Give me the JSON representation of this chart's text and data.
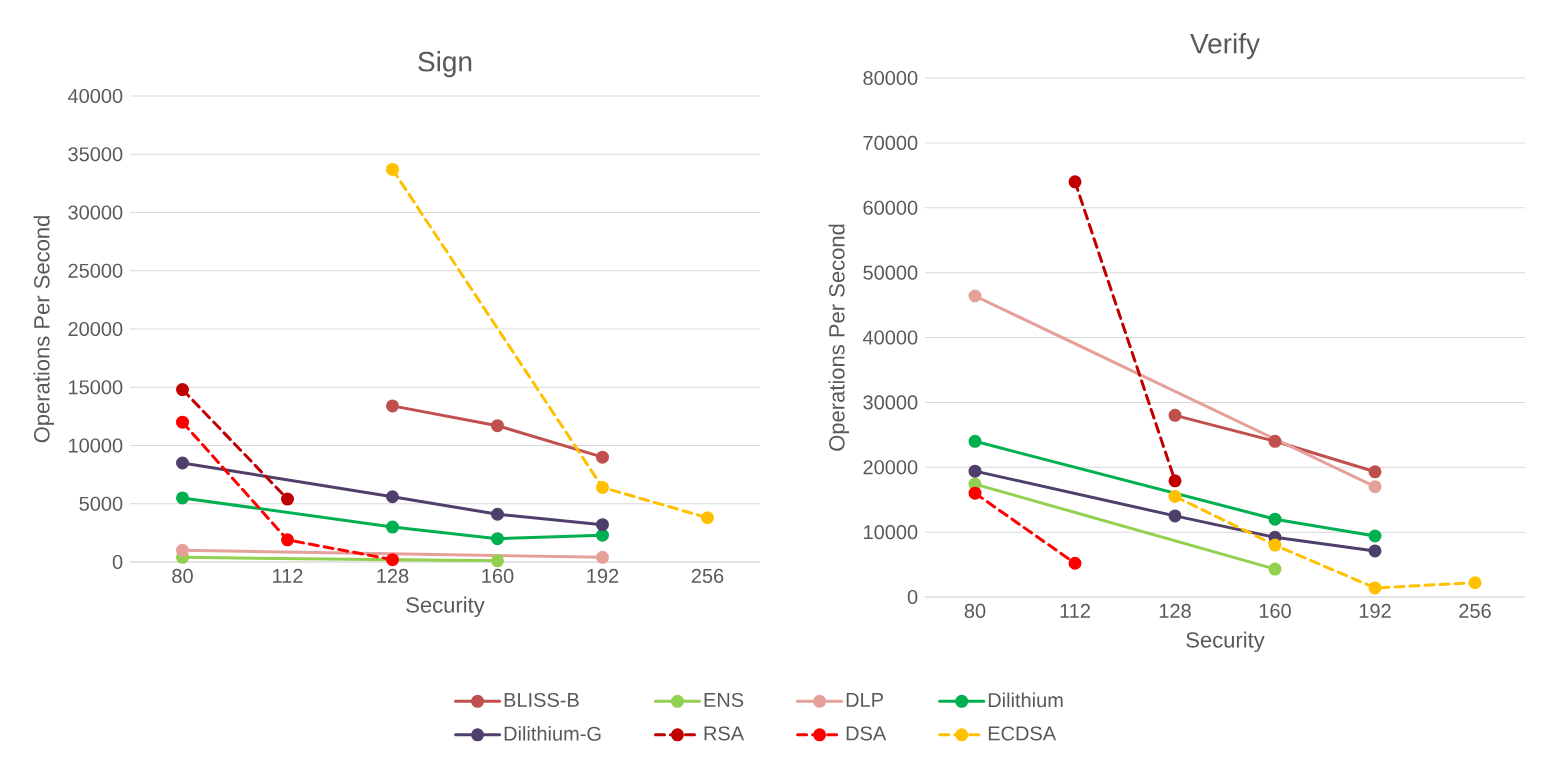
{
  "chart_data": [
    {
      "type": "line",
      "title": "Sign",
      "xlabel": "Security",
      "ylabel": "Operations Per Second",
      "categories": [
        "80",
        "112",
        "128",
        "160",
        "192",
        "256"
      ],
      "ylim": [
        0,
        40000
      ],
      "yticks": [
        0,
        5000,
        10000,
        15000,
        20000,
        25000,
        30000,
        35000,
        40000
      ],
      "grid": "y",
      "marker": "circle",
      "legend": "bottom",
      "series": [
        {
          "name": "BLISS-B",
          "color": "#c0504d",
          "line_style": "solid",
          "values": [
            null,
            null,
            13400,
            11700,
            9000,
            null
          ]
        },
        {
          "name": "ENS",
          "color": "#92d050",
          "line_style": "solid",
          "values": [
            400,
            null,
            null,
            100,
            null,
            null
          ]
        },
        {
          "name": "DLP",
          "color": "#e6a09a",
          "line_style": "solid",
          "values": [
            1000,
            null,
            null,
            null,
            400,
            null
          ]
        },
        {
          "name": "Dilithium",
          "color": "#00b050",
          "line_style": "solid",
          "values": [
            5500,
            null,
            3000,
            2000,
            2300,
            null
          ]
        },
        {
          "name": "Dilithium-G",
          "color": "#4f3f6b",
          "line_style": "solid",
          "values": [
            8500,
            null,
            5600,
            4100,
            3200,
            null
          ]
        },
        {
          "name": "RSA",
          "color": "#c00000",
          "line_style": "dashed",
          "values": [
            14800,
            5400,
            null,
            null,
            null,
            null
          ]
        },
        {
          "name": "DSA",
          "color": "#ff0000",
          "line_style": "dashed",
          "values": [
            12000,
            1900,
            200,
            null,
            null,
            null
          ]
        },
        {
          "name": "ECDSA",
          "color": "#ffc000",
          "line_style": "dashed",
          "values": [
            null,
            null,
            33700,
            null,
            6400,
            3800
          ]
        }
      ]
    },
    {
      "type": "line",
      "title": "Verify",
      "xlabel": "Security",
      "ylabel": "Operations Per Second",
      "categories": [
        "80",
        "112",
        "128",
        "160",
        "192",
        "256"
      ],
      "ylim": [
        0,
        80000
      ],
      "yticks": [
        0,
        10000,
        20000,
        30000,
        40000,
        50000,
        60000,
        70000,
        80000
      ],
      "grid": "y",
      "marker": "circle",
      "series": [
        {
          "color": "#c0504d",
          "line_style": "solid",
          "values": [
            null,
            null,
            28000,
            24000,
            19300,
            null
          ]
        },
        {
          "color": "#92d050",
          "line_style": "solid",
          "values": [
            17400,
            null,
            null,
            4300,
            null,
            null
          ]
        },
        {
          "color": "#e6a09a",
          "line_style": "solid",
          "values": [
            46400,
            null,
            null,
            null,
            17000,
            null
          ]
        },
        {
          "color": "#00b050",
          "line_style": "solid",
          "values": [
            24000,
            null,
            null,
            12000,
            9400,
            null
          ]
        },
        {
          "color": "#4f3f6b",
          "line_style": "solid",
          "values": [
            19400,
            null,
            12500,
            9200,
            7100,
            null
          ]
        },
        {
          "color": "#c00000",
          "line_style": "dashed",
          "values": [
            null,
            64000,
            17900,
            null,
            null,
            null
          ]
        },
        {
          "color": "#ff0000",
          "line_style": "dashed",
          "values": [
            16000,
            5200,
            null,
            null,
            null,
            null
          ]
        },
        {
          "color": "#ffc000",
          "line_style": "dashed",
          "values": [
            null,
            null,
            15500,
            8000,
            1400,
            2200
          ]
        }
      ]
    }
  ]
}
